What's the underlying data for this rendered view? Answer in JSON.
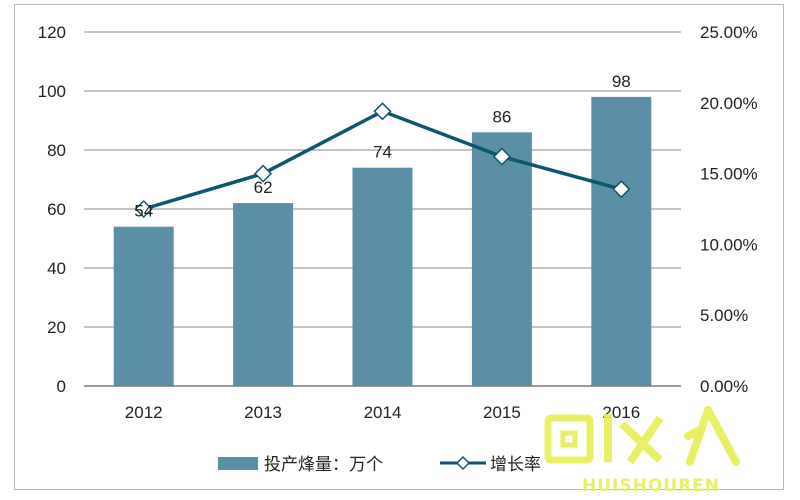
{
  "chart_data": {
    "type": "bar+line",
    "categories": [
      "2012",
      "2013",
      "2014",
      "2015",
      "2016"
    ],
    "bar_series": {
      "name": "投产烽量：万个",
      "values": [
        54,
        62,
        74,
        86,
        98
      ],
      "color": "#5b8fa8"
    },
    "line_series": {
      "name": "增长率",
      "values": [
        12.5,
        15.0,
        19.4,
        16.2,
        13.9
      ],
      "color": "#0e5670"
    },
    "y_left": {
      "min": 0,
      "max": 120,
      "ticks": [
        "0",
        "20",
        "40",
        "60",
        "80",
        "100",
        "120"
      ]
    },
    "y_right": {
      "min": 0,
      "max": 25,
      "ticks": [
        "0.00%",
        "5.00%",
        "10.00%",
        "15.00%",
        "20.00%",
        "25.00%"
      ]
    },
    "grid": true,
    "legend_position": "bottom"
  },
  "watermark": {
    "text_main": "回收人",
    "text_sub": "HUISHOUREN",
    "color": "#e9ef5a"
  }
}
